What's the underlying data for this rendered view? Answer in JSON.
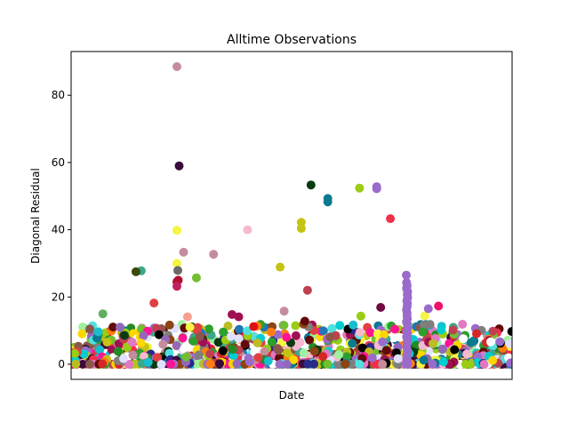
{
  "chart_data": {
    "type": "scatter",
    "title": "Alltime Observations",
    "xlabel": "Date",
    "ylabel": "Diagonal Residual",
    "x_ticks_shown": false,
    "xlim": [
      0,
      1000
    ],
    "ylim": [
      -4.5,
      93
    ],
    "y_ticks": [
      0,
      20,
      40,
      60,
      80
    ],
    "grid": false,
    "legend": "none",
    "points": [
      {
        "x": 240,
        "y": 88.5,
        "color": "#c48c9c"
      },
      {
        "x": 245,
        "y": 59.0,
        "color": "#3a0a3a"
      },
      {
        "x": 544,
        "y": 53.3,
        "color": "#0a3a12"
      },
      {
        "x": 693,
        "y": 52.8,
        "color": "#9b6bcb"
      },
      {
        "x": 693,
        "y": 52.2,
        "color": "#9b6bcb"
      },
      {
        "x": 654,
        "y": 52.4,
        "color": "#9acd13"
      },
      {
        "x": 582,
        "y": 49.3,
        "color": "#0a7a8f"
      },
      {
        "x": 582,
        "y": 48.3,
        "color": "#0a7a8f"
      },
      {
        "x": 724,
        "y": 43.3,
        "color": "#f0304a"
      },
      {
        "x": 522,
        "y": 42.2,
        "color": "#c5c313"
      },
      {
        "x": 522,
        "y": 40.4,
        "color": "#c5c313"
      },
      {
        "x": 240,
        "y": 39.8,
        "color": "#f5f542"
      },
      {
        "x": 400,
        "y": 40.0,
        "color": "#f7b8d0"
      },
      {
        "x": 255,
        "y": 33.3,
        "color": "#c48c9c"
      },
      {
        "x": 323,
        "y": 32.7,
        "color": "#c48c9c"
      },
      {
        "x": 240,
        "y": 30.0,
        "color": "#f5f542"
      },
      {
        "x": 474,
        "y": 28.9,
        "color": "#c5c313"
      },
      {
        "x": 159,
        "y": 27.8,
        "color": "#3aa88a"
      },
      {
        "x": 147,
        "y": 27.5,
        "color": "#3a4a0a"
      },
      {
        "x": 242,
        "y": 27.9,
        "color": "#6a6a6a"
      },
      {
        "x": 760,
        "y": 26.5,
        "color": "#9b6bcb"
      },
      {
        "x": 284,
        "y": 25.7,
        "color": "#70c030"
      },
      {
        "x": 243,
        "y": 25.0,
        "color": "#b01030"
      },
      {
        "x": 240,
        "y": 24.5,
        "color": "#b01030"
      },
      {
        "x": 240,
        "y": 23.2,
        "color": "#c02060"
      },
      {
        "x": 536,
        "y": 22.0,
        "color": "#c04050"
      },
      {
        "x": 188,
        "y": 18.2,
        "color": "#e04040"
      },
      {
        "x": 833,
        "y": 17.3,
        "color": "#f0106a"
      },
      {
        "x": 702,
        "y": 16.9,
        "color": "#700a40"
      },
      {
        "x": 483,
        "y": 15.8,
        "color": "#c48c9c"
      },
      {
        "x": 72,
        "y": 15.0,
        "color": "#60b060"
      },
      {
        "x": 380,
        "y": 14.1,
        "color": "#a01050"
      },
      {
        "x": 802,
        "y": 14.4,
        "color": "#f5f542"
      },
      {
        "x": 264,
        "y": 14.1,
        "color": "#f7a090"
      },
      {
        "x": 414,
        "y": 11.2,
        "color": "#e01010"
      },
      {
        "x": 530,
        "y": 12.8,
        "color": "#600a0a"
      },
      {
        "x": 657,
        "y": 14.3,
        "color": "#9acd13"
      },
      {
        "x": 810,
        "y": 16.5,
        "color": "#9b6bcb"
      },
      {
        "x": 365,
        "y": 14.8,
        "color": "#a01050"
      }
    ],
    "dense_band": {
      "x_range": [
        0,
        1000
      ],
      "y_range": [
        0,
        12
      ],
      "count": 1400,
      "palette": [
        "#1f77b4",
        "#ff7f0e",
        "#2ca02c",
        "#d62728",
        "#9467bd",
        "#8c564b",
        "#e377c2",
        "#7f7f7f",
        "#bcbd22",
        "#17becf",
        "#f5f542",
        "#c5c313",
        "#9acd13",
        "#70c030",
        "#0a3a12",
        "#3a0a3a",
        "#c48c9c",
        "#f0304a",
        "#0a7a8f",
        "#3aa88a",
        "#e04040",
        "#600a0a",
        "#f7b8d0",
        "#a01050",
        "#c04050",
        "#2a2a8a",
        "#e0e0ff",
        "#50e0e0",
        "#a0f0a0",
        "#000000",
        "#ffffff",
        "#ffd700",
        "#8b4513",
        "#ff1493",
        "#00ced1",
        "#9b6bcb",
        "#228b22"
      ],
      "tall_column": {
        "x": 762,
        "y_max": 25,
        "color": "#9b6bcb"
      }
    }
  }
}
